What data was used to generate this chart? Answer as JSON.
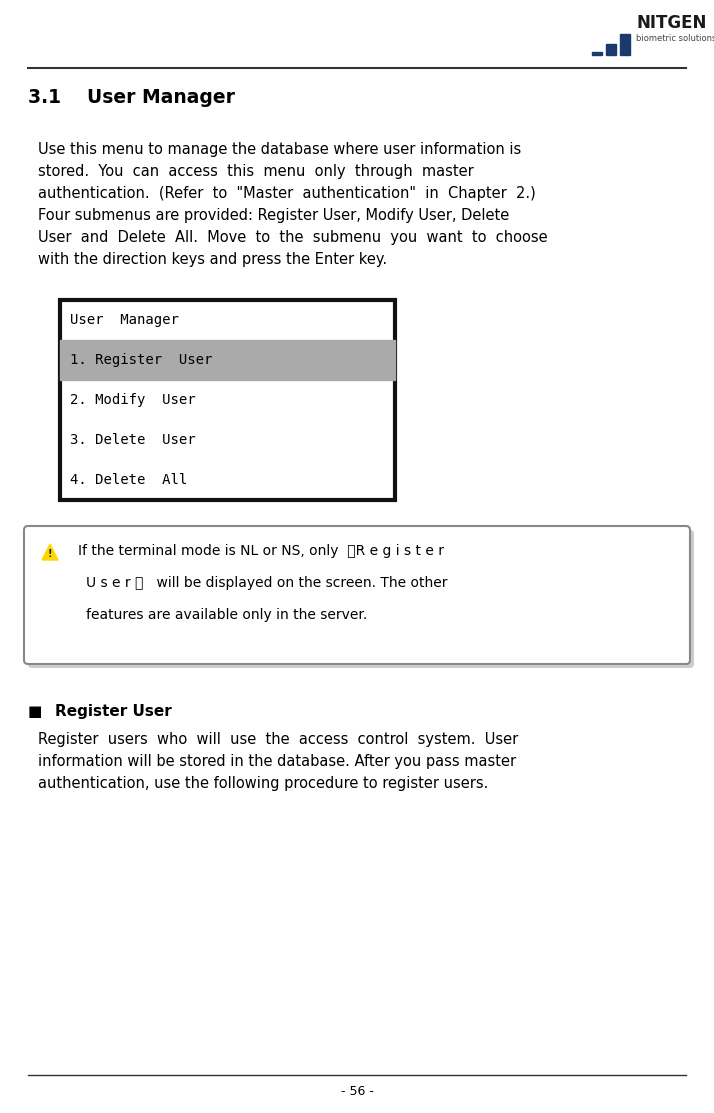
{
  "page_width": 7.14,
  "page_height": 11.13,
  "dpi": 100,
  "bg_color": "#ffffff",
  "logo_text_nitgen": "NITGEN",
  "logo_text_sub": "biometric solutions",
  "bar_color": "#1a3a6b",
  "section_title": "3.1    User Manager",
  "body_lines": [
    "Use this menu to manage the database where user information is",
    "stored.  You  can  access  this  menu  only  through  master",
    "authentication.  (Refer  to  \"Master  authentication\"  in  Chapter  2.)",
    "Four submenus are provided: Register User, Modify User, Delete",
    "User  and  Delete  All.  Move  to  the  submenu  you  want  to  choose",
    "with the direction keys and press the Enter key."
  ],
  "lcd_lines": [
    {
      "text": "User  Manager",
      "highlighted": false
    },
    {
      "text": "1. Register  User",
      "highlighted": true
    },
    {
      "text": "2. Modify  User",
      "highlighted": false
    },
    {
      "text": "3. Delete  User",
      "highlighted": false
    },
    {
      "text": "4. Delete  All",
      "highlighted": false
    }
  ],
  "lcd_bg": "#ffffff",
  "lcd_highlight_bg": "#aaaaaa",
  "lcd_border": "#111111",
  "lcd_font_color": "#000000",
  "note_text_line1": "If the terminal mode is NL or NS, only  『R e g i s t e r",
  "note_text_line2": "U s e r 』   will be displayed on the screen. The other",
  "note_text_line3": "features are available only in the server.",
  "note_border": "#888888",
  "note_shadow": "#cccccc",
  "note_bg": "#ffffff",
  "bullet_title": "Register User",
  "bullet_body_lines": [
    "Register  users  who  will  use  the  access  control  system.  User",
    "information will be stored in the database. After you pass master",
    "authentication, use the following procedure to register users."
  ],
  "footer_text": "- 56 -"
}
